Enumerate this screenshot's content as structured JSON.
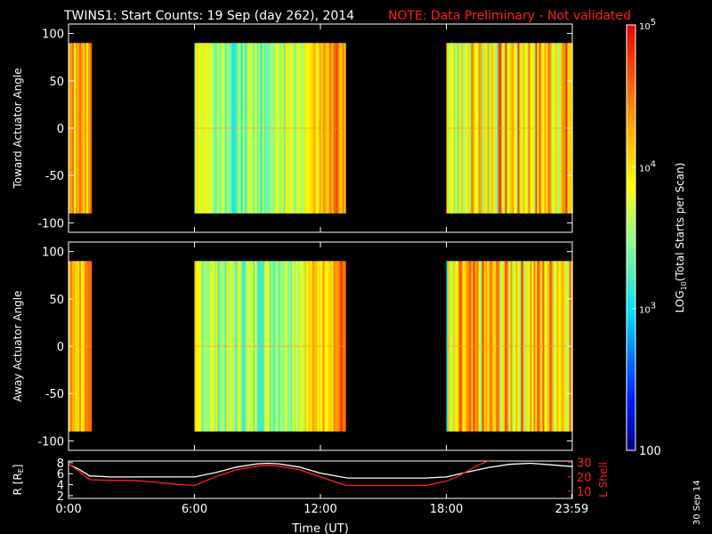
{
  "header": {
    "title": "TWINS1: Start Counts: 19 Sep (day 262), 2014",
    "note": "NOTE: Data Preliminary - Not validated",
    "note_color": "#ff2020"
  },
  "footer": {
    "date_stamp": "30 Sep 14"
  },
  "chart_data": [
    {
      "type": "heatmap",
      "panel": "toward",
      "ylabel": "Toward Actuator Angle",
      "x_range_hours": [
        0,
        24
      ],
      "ylim": [
        -110,
        110
      ],
      "y_ticks": [
        100,
        50,
        0,
        -50,
        -100
      ],
      "angle_range": [
        -90,
        90
      ],
      "data_blocks": [
        {
          "start_h": 0.0,
          "end_h": 1.1,
          "mean_log10": 4.15
        },
        {
          "start_h": 6.0,
          "end_h": 13.2,
          "mean_log10": 3.65
        },
        {
          "start_h": 18.0,
          "end_h": 24.0,
          "mean_log10": 3.95
        }
      ]
    },
    {
      "type": "heatmap",
      "panel": "away",
      "ylabel": "Away Actuator Angle",
      "x_range_hours": [
        0,
        24
      ],
      "ylim": [
        -110,
        110
      ],
      "y_ticks": [
        100,
        50,
        0,
        -50,
        -100
      ],
      "angle_range": [
        -90,
        90
      ],
      "data_blocks": [
        {
          "start_h": 0.0,
          "end_h": 1.1,
          "mean_log10": 4.2
        },
        {
          "start_h": 6.0,
          "end_h": 13.2,
          "mean_log10": 3.75
        },
        {
          "start_h": 18.0,
          "end_h": 24.0,
          "mean_log10": 4.0
        }
      ]
    },
    {
      "type": "line",
      "panel": "orbit",
      "ylabel_left": "R [R",
      "ylabel_left_sub": "E",
      "ylabel_right": "L Shell",
      "y_left_ticks": [
        8,
        6,
        4,
        2
      ],
      "y_left_range": [
        1.5,
        8.3
      ],
      "y_right_ticks": [
        30,
        20,
        10
      ],
      "y_right_range": [
        5,
        31
      ],
      "x_ticks": [
        "0:00",
        "6:00",
        "12:00",
        "18:00",
        "23:59"
      ],
      "x_tick_hours": [
        0,
        6,
        12,
        18,
        23.98
      ],
      "xlabel": "Time (UT)",
      "series": [
        {
          "color": "#ffffff",
          "axis": "left",
          "x": [
            0,
            0.5,
            1,
            2,
            3,
            4,
            5,
            6,
            7,
            8,
            9,
            9.5,
            10,
            11,
            12,
            13,
            13.3,
            14,
            15,
            16,
            17,
            18,
            19,
            20,
            21,
            22,
            23,
            23.98
          ],
          "y": [
            7.7,
            6.8,
            5.6,
            5.4,
            5.4,
            5.4,
            5.4,
            5.4,
            6.2,
            7.2,
            7.8,
            7.9,
            7.8,
            7.2,
            6.1,
            5.4,
            5.2,
            5.2,
            5.2,
            5.2,
            5.2,
            5.4,
            6.3,
            7.1,
            7.7,
            7.9,
            7.6,
            7.3
          ]
        },
        {
          "color": "#ff2020",
          "axis": "right",
          "x": [
            0,
            0.3,
            1,
            2,
            3,
            4,
            5,
            6,
            7,
            8,
            9,
            9.5,
            10,
            11,
            12,
            13,
            13.3,
            14,
            15,
            16,
            17,
            18,
            18.5,
            19,
            19.5,
            20,
            20.4
          ],
          "y": [
            29,
            26,
            18,
            17.5,
            17.5,
            16.5,
            15,
            14,
            20,
            25,
            27.5,
            28,
            27.5,
            25,
            20,
            15,
            14,
            14,
            14,
            14,
            14,
            17,
            20,
            24,
            28,
            31,
            33
          ]
        }
      ]
    },
    {
      "type": "colorbar",
      "label": "LOG",
      "label_sub": "10",
      "label_rest": "(Total Starts per Scan)",
      "min": 100,
      "max": 100000,
      "tick_labels": [
        {
          "log": 5,
          "base": "10",
          "exp": "5"
        },
        {
          "log": 4,
          "base": "10",
          "exp": "4"
        },
        {
          "log": 3,
          "base": "10",
          "exp": "3"
        },
        {
          "log": 2,
          "text": "100"
        }
      ]
    }
  ]
}
